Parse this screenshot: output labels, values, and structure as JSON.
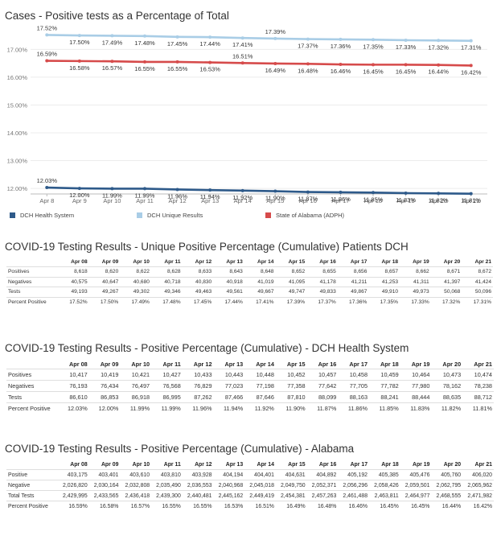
{
  "chart_data": {
    "type": "line",
    "title": "Cases - Positive tests as a Percentage of Total",
    "x": [
      "Apr 8",
      "Apr 9",
      "Apr 10",
      "Apr 11",
      "Apr 12",
      "Apr 13",
      "Apr 14",
      "Apr 15",
      "Apr 16",
      "Apr 17",
      "Apr 18",
      "Apr 19",
      "Apr 20",
      "Apr 21"
    ],
    "y_ticks": [
      "12.00%",
      "13.00%",
      "14.00%",
      "15.00%",
      "16.00%",
      "17.00%"
    ],
    "ylim": [
      11.8,
      17.85
    ],
    "grid": true,
    "legend_position": "bottom",
    "series": [
      {
        "name": "DCH Health System",
        "color": "#2e5a8a",
        "values": [
          12.03,
          12.0,
          11.99,
          11.99,
          11.96,
          11.94,
          11.92,
          11.9,
          11.87,
          11.86,
          11.85,
          11.83,
          11.82,
          11.81
        ],
        "labels": [
          "12.03%",
          "12.00%",
          "11.99%",
          "11.99%",
          "11.96%",
          "11.94%",
          "11.92%",
          "11.90%",
          "11.87%",
          "11.86%",
          "11.85%",
          "11.83%",
          "11.82%",
          "11.81%"
        ]
      },
      {
        "name": "DCH Unique Results",
        "color": "#a9cde6",
        "values": [
          17.52,
          17.5,
          17.49,
          17.48,
          17.45,
          17.44,
          17.41,
          17.39,
          17.37,
          17.36,
          17.35,
          17.33,
          17.32,
          17.31
        ],
        "labels": [
          "17.52%",
          "17.50%",
          "17.49%",
          "17.48%",
          "17.45%",
          "17.44%",
          "17.41%",
          "17.39%",
          "17.37%",
          "17.36%",
          "17.35%",
          "17.33%",
          "17.32%",
          "17.31%"
        ]
      },
      {
        "name": "State of Alabama (ADPH)",
        "color": "#d64b4b",
        "values": [
          16.59,
          16.58,
          16.57,
          16.55,
          16.55,
          16.53,
          16.51,
          16.49,
          16.48,
          16.46,
          16.45,
          16.45,
          16.44,
          16.42
        ],
        "labels": [
          "16.59%",
          "16.58%",
          "16.57%",
          "16.55%",
          "16.55%",
          "16.53%",
          "16.51%",
          "16.49%",
          "16.48%",
          "16.46%",
          "16.45%",
          "16.45%",
          "16.44%",
          "16.42%"
        ]
      }
    ]
  },
  "tables": [
    {
      "title": "COVID-19 Testing Results - Unique Positive Percentage (Cumulative) Patients DCH",
      "headers": [
        "Apr 08",
        "Apr 09",
        "Apr 10",
        "Apr 11",
        "Apr 12",
        "Apr 13",
        "Apr 14",
        "Apr 15",
        "Apr 16",
        "Apr 17",
        "Apr 18",
        "Apr 19",
        "Apr 20",
        "Apr 21"
      ],
      "rows": [
        {
          "label": "Positives",
          "values": [
            "8,618",
            "8,620",
            "8,622",
            "8,628",
            "8,633",
            "8,643",
            "8,648",
            "8,652",
            "8,655",
            "8,656",
            "8,657",
            "8,662",
            "8,671",
            "8,672"
          ]
        },
        {
          "label": "Negatives",
          "values": [
            "40,575",
            "40,647",
            "40,680",
            "40,718",
            "40,830",
            "40,918",
            "41,019",
            "41,095",
            "41,178",
            "41,211",
            "41,253",
            "41,311",
            "41,397",
            "41,424"
          ]
        },
        {
          "label": "Tests",
          "values": [
            "49,193",
            "49,267",
            "49,302",
            "49,346",
            "49,463",
            "49,561",
            "49,667",
            "49,747",
            "49,833",
            "49,867",
            "49,910",
            "49,973",
            "50,068",
            "50,096"
          ]
        },
        {
          "label": "Percent Positive",
          "values": [
            "17.52%",
            "17.50%",
            "17.49%",
            "17.48%",
            "17.45%",
            "17.44%",
            "17.41%",
            "17.39%",
            "17.37%",
            "17.36%",
            "17.35%",
            "17.33%",
            "17.32%",
            "17.31%"
          ]
        }
      ]
    },
    {
      "title": "COVID-19 Testing Results - Positive Percentage (Cumulative) - DCH Health System",
      "headers": [
        "Apr 08",
        "Apr 09",
        "Apr 10",
        "Apr 11",
        "Apr 12",
        "Apr 13",
        "Apr 14",
        "Apr 15",
        "Apr 16",
        "Apr 17",
        "Apr 18",
        "Apr 19",
        "Apr 20",
        "Apr 21"
      ],
      "rows": [
        {
          "label": "Positives",
          "values": [
            "10,417",
            "10,419",
            "10,421",
            "10,427",
            "10,433",
            "10,443",
            "10,448",
            "10,452",
            "10,457",
            "10,458",
            "10,459",
            "10,464",
            "10,473",
            "10,474"
          ]
        },
        {
          "label": "Negatives",
          "values": [
            "76,193",
            "76,434",
            "76,497",
            "76,568",
            "76,829",
            "77,023",
            "77,198",
            "77,358",
            "77,642",
            "77,705",
            "77,782",
            "77,980",
            "78,162",
            "78,238"
          ]
        },
        {
          "label": "Tests",
          "values": [
            "86,610",
            "86,853",
            "86,918",
            "86,995",
            "87,262",
            "87,466",
            "87,646",
            "87,810",
            "88,099",
            "88,163",
            "88,241",
            "88,444",
            "88,635",
            "88,712"
          ]
        },
        {
          "label": "Percent Positive",
          "values": [
            "12.03%",
            "12.00%",
            "11.99%",
            "11.99%",
            "11.96%",
            "11.94%",
            "11.92%",
            "11.90%",
            "11.87%",
            "11.86%",
            "11.85%",
            "11.83%",
            "11.82%",
            "11.81%"
          ]
        }
      ]
    },
    {
      "title": "COVID-19 Testing Results - Positive Percentage (Cumulative) - Alabama",
      "headers": [
        "Apr 08",
        "Apr 09",
        "Apr 10",
        "Apr 11",
        "Apr 12",
        "Apr 13",
        "Apr 14",
        "Apr 15",
        "Apr 16",
        "Apr 17",
        "Apr 18",
        "Apr 19",
        "Apr 20",
        "Apr 21"
      ],
      "rows": [
        {
          "label": "Positive",
          "values": [
            "403,175",
            "403,401",
            "403,610",
            "403,810",
            "403,928",
            "404,194",
            "404,401",
            "404,631",
            "404,892",
            "405,192",
            "405,385",
            "405,476",
            "405,760",
            "406,020"
          ]
        },
        {
          "label": "Negative",
          "values": [
            "2,026,820",
            "2,030,164",
            "2,032,808",
            "2,035,490",
            "2,036,553",
            "2,040,968",
            "2,045,018",
            "2,049,750",
            "2,052,371",
            "2,056,296",
            "2,058,426",
            "2,059,501",
            "2,062,795",
            "2,065,962"
          ]
        },
        {
          "label": "Total Tests",
          "values": [
            "2,429,995",
            "2,433,565",
            "2,436,418",
            "2,439,300",
            "2,440,481",
            "2,445,162",
            "2,449,419",
            "2,454,381",
            "2,457,263",
            "2,461,488",
            "2,463,811",
            "2,464,977",
            "2,468,555",
            "2,471,982"
          ]
        },
        {
          "label": "Percent Positive",
          "values": [
            "16.59%",
            "16.58%",
            "16.57%",
            "16.55%",
            "16.55%",
            "16.53%",
            "16.51%",
            "16.49%",
            "16.48%",
            "16.46%",
            "16.45%",
            "16.45%",
            "16.44%",
            "16.42%"
          ]
        }
      ]
    }
  ]
}
